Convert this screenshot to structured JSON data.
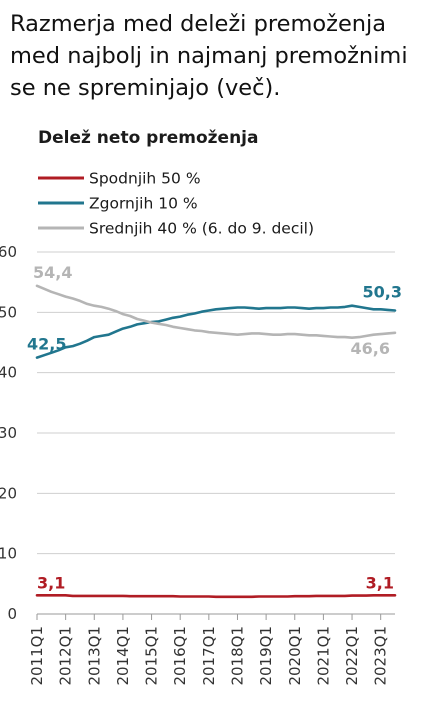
{
  "headline": {
    "lines": [
      "Razmerja med deleži premoženja",
      "med najbolj in najmanj premožnimi",
      "se ne spreminjajo (več)."
    ]
  },
  "chart_data": {
    "type": "line",
    "title": "Delež neto premoženja",
    "xlabel": "",
    "ylabel": "",
    "ylim": [
      0,
      60
    ],
    "yticks": [
      "0",
      "10",
      "20",
      "30",
      "40",
      "50",
      "60"
    ],
    "grid": true,
    "legend_placement": "top-left",
    "x": [
      "2011Q1",
      "2011Q2",
      "2011Q3",
      "2011Q4",
      "2012Q1",
      "2012Q2",
      "2012Q3",
      "2012Q4",
      "2013Q1",
      "2013Q2",
      "2013Q3",
      "2013Q4",
      "2014Q1",
      "2014Q2",
      "2014Q3",
      "2014Q4",
      "2015Q1",
      "2015Q2",
      "2015Q3",
      "2015Q4",
      "2016Q1",
      "2016Q2",
      "2016Q3",
      "2016Q4",
      "2017Q1",
      "2017Q2",
      "2017Q3",
      "2017Q4",
      "2018Q1",
      "2018Q2",
      "2018Q3",
      "2018Q4",
      "2019Q1",
      "2019Q2",
      "2019Q3",
      "2019Q4",
      "2020Q1",
      "2020Q2",
      "2020Q3",
      "2020Q4",
      "2021Q1",
      "2021Q2",
      "2021Q3",
      "2021Q4",
      "2022Q1",
      "2022Q2",
      "2022Q3",
      "2022Q4",
      "2023Q1",
      "2023Q2",
      "2023Q3"
    ],
    "xticks": [
      "2011Q1",
      "2012Q1",
      "2013Q1",
      "2014Q1",
      "2015Q1",
      "2016Q1",
      "2017Q1",
      "2018Q1",
      "2019Q1",
      "2020Q1",
      "2021Q1",
      "2022Q1",
      "2023Q1"
    ],
    "series": [
      {
        "name": "Spodnjih 50 %",
        "color": "#b01c24",
        "values": [
          3.1,
          3.1,
          3.1,
          3.1,
          3.1,
          3.0,
          3.0,
          3.0,
          3.0,
          3.0,
          3.0,
          3.0,
          3.0,
          2.95,
          2.95,
          2.95,
          2.95,
          2.95,
          2.95,
          2.95,
          2.9,
          2.9,
          2.9,
          2.9,
          2.9,
          2.85,
          2.85,
          2.85,
          2.85,
          2.85,
          2.85,
          2.9,
          2.9,
          2.9,
          2.9,
          2.9,
          2.95,
          2.95,
          2.95,
          3.0,
          3.0,
          3.0,
          3.0,
          3.0,
          3.05,
          3.05,
          3.05,
          3.1,
          3.1,
          3.1,
          3.1
        ],
        "start_label": "3,1",
        "end_label": "3,1"
      },
      {
        "name": "Zgornjih 10 %",
        "color": "#21768e",
        "values": [
          42.5,
          42.9,
          43.3,
          43.7,
          44.2,
          44.4,
          44.8,
          45.3,
          45.9,
          46.1,
          46.3,
          46.8,
          47.3,
          47.6,
          48.0,
          48.2,
          48.4,
          48.5,
          48.8,
          49.1,
          49.3,
          49.6,
          49.8,
          50.1,
          50.3,
          50.5,
          50.6,
          50.7,
          50.8,
          50.8,
          50.7,
          50.6,
          50.7,
          50.7,
          50.7,
          50.8,
          50.8,
          50.7,
          50.6,
          50.7,
          50.7,
          50.8,
          50.8,
          50.9,
          51.1,
          50.9,
          50.7,
          50.5,
          50.5,
          50.4,
          50.3
        ],
        "start_label": "42,5",
        "end_label": "50,3"
      },
      {
        "name": "Srednjih 40 % (6. do 9. decil)",
        "color": "#b5b5b5",
        "values": [
          54.4,
          53.9,
          53.4,
          53.0,
          52.6,
          52.3,
          51.9,
          51.4,
          51.1,
          50.9,
          50.6,
          50.2,
          49.7,
          49.4,
          48.9,
          48.6,
          48.3,
          48.1,
          47.9,
          47.6,
          47.4,
          47.2,
          47.0,
          46.9,
          46.7,
          46.6,
          46.5,
          46.4,
          46.3,
          46.4,
          46.5,
          46.5,
          46.4,
          46.3,
          46.3,
          46.4,
          46.4,
          46.3,
          46.2,
          46.2,
          46.1,
          46.0,
          45.9,
          45.9,
          45.8,
          45.9,
          46.1,
          46.3,
          46.4,
          46.5,
          46.6
        ],
        "start_label": "54,4",
        "end_label": "46,6"
      }
    ]
  }
}
